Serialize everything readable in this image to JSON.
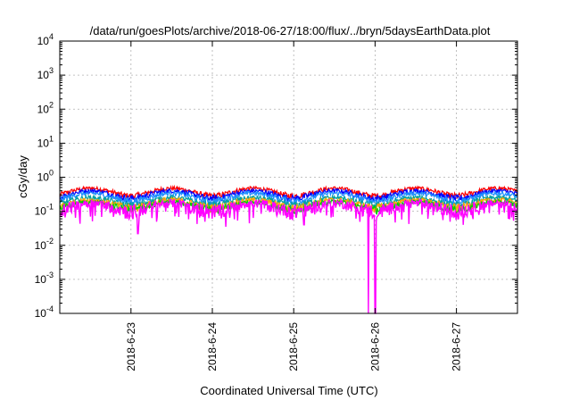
{
  "chart_data": {
    "type": "line",
    "title": "/data/run/goesPlots/archive/2018-06-27/18:00/flux/../bryn/5daysEarthData.plot",
    "xlabel": "Coordinated Universal Time (UTC)",
    "ylabel": "cGy/day",
    "yscale": "log",
    "ylim": [
      0.0001,
      10000
    ],
    "xlim": [
      "2018-06-22T03:00",
      "2018-06-27T18:00"
    ],
    "grid": true,
    "legend": "none",
    "y_ticks": [
      {
        "value": 0.0001,
        "base": "10",
        "exp": "-4"
      },
      {
        "value": 0.001,
        "base": "10",
        "exp": "-3"
      },
      {
        "value": 0.01,
        "base": "10",
        "exp": "-2"
      },
      {
        "value": 0.1,
        "base": "10",
        "exp": "-1"
      },
      {
        "value": 1,
        "base": "10",
        "exp": "0"
      },
      {
        "value": 10,
        "base": "10",
        "exp": "1"
      },
      {
        "value": 100,
        "base": "10",
        "exp": "2"
      },
      {
        "value": 1000,
        "base": "10",
        "exp": "3"
      },
      {
        "value": 10000,
        "base": "10",
        "exp": "4"
      }
    ],
    "x_ticks": [
      {
        "value": "2018-06-23T00:00",
        "label": "2018-6-23"
      },
      {
        "value": "2018-06-24T00:00",
        "label": "2018-6-24"
      },
      {
        "value": "2018-06-25T00:00",
        "label": "2018-6-25"
      },
      {
        "value": "2018-06-26T00:00",
        "label": "2018-6-26"
      },
      {
        "value": "2018-06-27T00:00",
        "label": "2018-6-27"
      }
    ],
    "series": [
      {
        "color": "#ff0000",
        "level": 0.38,
        "noise": 0.06
      },
      {
        "color": "#0000ff",
        "level": 0.32,
        "noise": 0.06
      },
      {
        "color": "#1e90ff",
        "level": 0.27,
        "noise": 0.05
      },
      {
        "color": "#00a0a0",
        "level": 0.2,
        "noise": 0.04
      },
      {
        "color": "#ffa500",
        "level": 0.17,
        "noise": 0.04
      },
      {
        "color": "#00cc00",
        "level": 0.15,
        "noise": 0.03
      },
      {
        "color": "#ff00ff",
        "level": 0.14,
        "noise": 0.05,
        "dropouts": [
          {
            "x": "2018-06-23T02:00",
            "y": 0.022
          },
          {
            "x": "2018-06-24T04:00",
            "y": 0.035
          },
          {
            "x": "2018-06-25T03:00",
            "y": 0.04
          },
          {
            "x": "2018-06-25T22:00",
            "y": 0.0001
          },
          {
            "x": "2018-06-26T00:00",
            "y": 0.0001
          },
          {
            "x": "2018-06-27T02:00",
            "y": 0.04
          }
        ]
      }
    ]
  }
}
